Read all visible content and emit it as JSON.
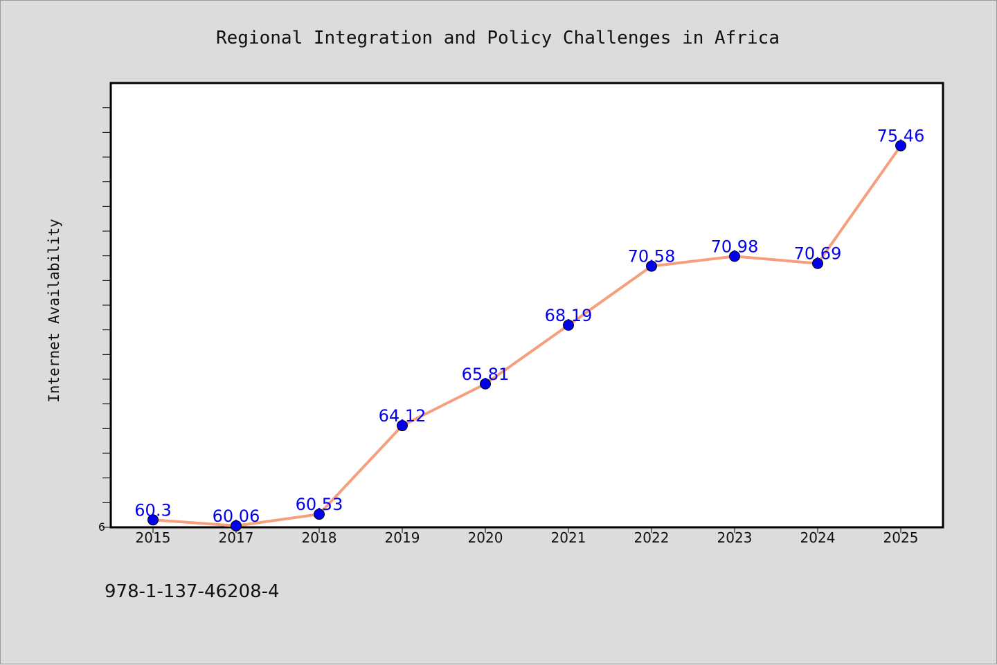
{
  "chart_data": {
    "type": "line",
    "title": "Regional Integration and Policy Challenges in Africa",
    "xlabel": "",
    "ylabel": "Internet Availability",
    "categories": [
      "2015",
      "2017",
      "2018",
      "2019",
      "2020",
      "2021",
      "2022",
      "2023",
      "2024",
      "2025"
    ],
    "series": [
      {
        "values": [
          60.3,
          60.06,
          60.53,
          64.12,
          65.81,
          68.19,
          70.58,
          70.98,
          70.69,
          75.46
        ],
        "labels": [
          "60.3",
          "60.06",
          "60.53",
          "64.12",
          "65.81",
          "68.19",
          "70.58",
          "70.98",
          "70.69",
          "75.46"
        ]
      }
    ],
    "ylim": [
      60,
      78
    ],
    "y_tick_label": "6",
    "grid": false,
    "legend": "none",
    "colors": {
      "line": "#f4a07e",
      "marker": "#0000ee",
      "label": "#0000ee",
      "plot_background": "#ffffff",
      "figure_background": "#dcdcdc"
    }
  },
  "footer": {
    "isbn": "978-1-137-46208-4"
  }
}
